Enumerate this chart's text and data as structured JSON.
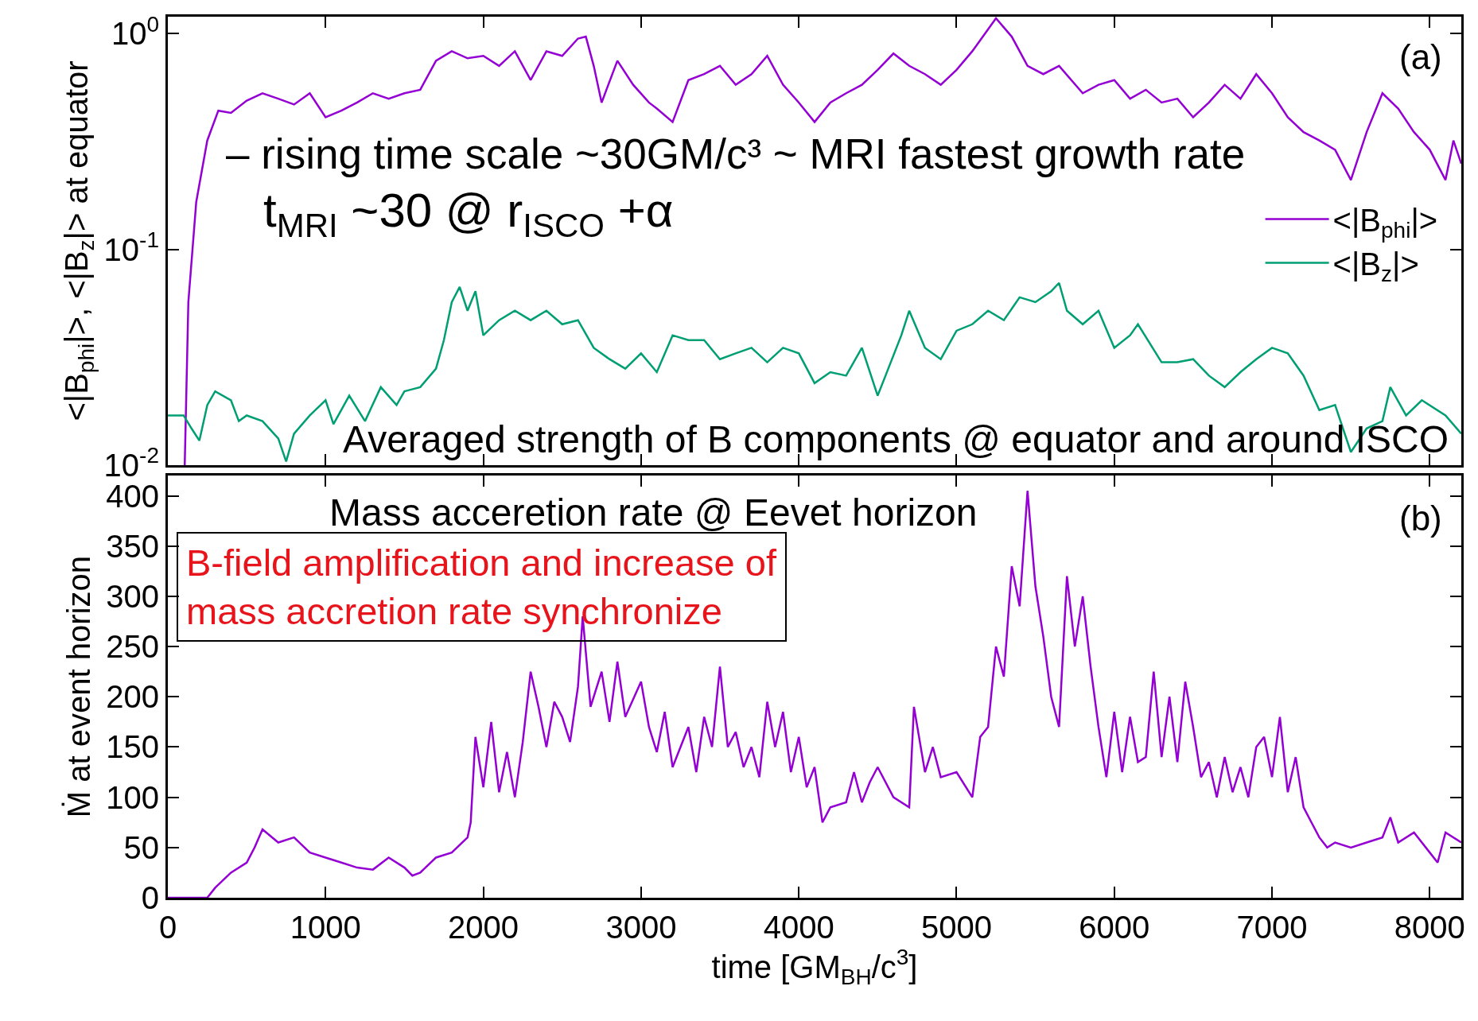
{
  "chart_data": [
    {
      "type": "line",
      "ylabel": "<|B$_{phi}$|>, <|B$_{z}$|> at equator",
      "log": "y",
      "xlim": [
        0,
        8200
      ],
      "xticks": [
        0,
        1000,
        2000,
        3000,
        4000,
        5000,
        6000,
        7000,
        8000
      ],
      "ylim": [
        0.01,
        1.2
      ],
      "yticks": [
        {
          "value": 1,
          "label": "10$^{0}$"
        },
        {
          "value": 0.1,
          "label": "10$^{-1}$"
        },
        {
          "value": 0.01,
          "label": "10$^{-2}$"
        }
      ],
      "tick_labels": "y",
      "legend": "right",
      "annotations": [
        "– rising time scale ~30GM/c³ ~ MRI fastest growth rate",
        "t$_{MRI}$ ~30 @ r$_{ISCO}$ +α",
        "Averaged strength of B components @ equator and around ISCO",
        "(a)"
      ],
      "series": [
        {
          "name": "<|B$_{phi}$|>",
          "color": "#9400d3",
          "x": [
            107,
            130,
            180,
            250,
            320,
            400,
            500,
            600,
            700,
            800,
            900,
            1000,
            1100,
            1200,
            1300,
            1400,
            1500,
            1600,
            1700,
            1800,
            1900,
            2000,
            2100,
            2200,
            2300,
            2400,
            2500,
            2600,
            2650,
            2700,
            2750,
            2850,
            2950,
            3050,
            3100,
            3200,
            3300,
            3400,
            3500,
            3600,
            3700,
            3800,
            3900,
            4000,
            4100,
            4200,
            4300,
            4400,
            4500,
            4600,
            4700,
            4800,
            4900,
            5000,
            5100,
            5250,
            5350,
            5450,
            5550,
            5650,
            5800,
            5900,
            6000,
            6100,
            6200,
            6300,
            6400,
            6500,
            6600,
            6700,
            6800,
            6900,
            7000,
            7100,
            7200,
            7300,
            7400,
            7500,
            7600,
            7700,
            7800,
            7900,
            8000,
            8100,
            8150,
            8200
          ],
          "values": [
            0.01,
            0.057,
            0.166,
            0.32,
            0.44,
            0.43,
            0.49,
            0.53,
            0.5,
            0.47,
            0.53,
            0.41,
            0.44,
            0.48,
            0.53,
            0.5,
            0.53,
            0.55,
            0.75,
            0.83,
            0.77,
            0.79,
            0.71,
            0.83,
            0.61,
            0.83,
            0.79,
            0.95,
            0.97,
            0.71,
            0.48,
            0.75,
            0.58,
            0.48,
            0.45,
            0.39,
            0.61,
            0.65,
            0.71,
            0.58,
            0.65,
            0.79,
            0.58,
            0.48,
            0.39,
            0.48,
            0.53,
            0.58,
            0.68,
            0.81,
            0.71,
            0.65,
            0.58,
            0.68,
            0.83,
            1.18,
            0.97,
            0.71,
            0.65,
            0.71,
            0.53,
            0.58,
            0.61,
            0.5,
            0.55,
            0.48,
            0.5,
            0.41,
            0.48,
            0.58,
            0.5,
            0.65,
            0.53,
            0.41,
            0.35,
            0.32,
            0.29,
            0.21,
            0.35,
            0.53,
            0.45,
            0.35,
            0.29,
            0.21,
            0.32,
            0.25
          ]
        },
        {
          "name": "<|B$_{z}$|>",
          "color": "#009e73",
          "x": [
            0,
            100,
            150,
            200,
            250,
            300,
            400,
            450,
            500,
            600,
            700,
            750,
            800,
            900,
            1000,
            1050,
            1150,
            1250,
            1350,
            1450,
            1500,
            1600,
            1700,
            1750,
            1800,
            1850,
            1900,
            1950,
            2000,
            2100,
            2200,
            2300,
            2400,
            2500,
            2600,
            2700,
            2800,
            2900,
            3000,
            3100,
            3200,
            3300,
            3400,
            3500,
            3600,
            3700,
            3800,
            3900,
            4000,
            4100,
            4200,
            4300,
            4400,
            4500,
            4550,
            4650,
            4700,
            4800,
            4900,
            5000,
            5100,
            5200,
            5300,
            5400,
            5500,
            5600,
            5650,
            5700,
            5800,
            5900,
            6000,
            6100,
            6150,
            6300,
            6400,
            6500,
            6600,
            6700,
            6800,
            6900,
            7000,
            7100,
            7200,
            7300,
            7400,
            7500,
            7600,
            7700,
            7750,
            7850,
            7950,
            8100,
            8200
          ],
          "values": [
            0.017,
            0.017,
            0.0148,
            0.013,
            0.019,
            0.022,
            0.02,
            0.016,
            0.017,
            0.016,
            0.0133,
            0.0104,
            0.014,
            0.017,
            0.02,
            0.0155,
            0.021,
            0.016,
            0.023,
            0.019,
            0.022,
            0.023,
            0.028,
            0.038,
            0.057,
            0.067,
            0.052,
            0.064,
            0.04,
            0.047,
            0.052,
            0.047,
            0.052,
            0.045,
            0.047,
            0.035,
            0.031,
            0.028,
            0.033,
            0.027,
            0.04,
            0.038,
            0.038,
            0.031,
            0.033,
            0.035,
            0.03,
            0.035,
            0.033,
            0.024,
            0.027,
            0.026,
            0.035,
            0.021,
            0.026,
            0.04,
            0.052,
            0.035,
            0.031,
            0.042,
            0.045,
            0.052,
            0.047,
            0.06,
            0.057,
            0.064,
            0.07,
            0.052,
            0.045,
            0.052,
            0.035,
            0.04,
            0.045,
            0.03,
            0.03,
            0.031,
            0.026,
            0.023,
            0.027,
            0.031,
            0.035,
            0.033,
            0.026,
            0.018,
            0.019,
            0.0115,
            0.0148,
            0.016,
            0.023,
            0.017,
            0.02,
            0.017,
            0.014
          ]
        }
      ]
    },
    {
      "type": "line",
      "xlabel": "time [GM$_{BH}$/c$^{3}$]",
      "ylabel": "Ṁ at event horizon",
      "xlim": [
        0,
        8200
      ],
      "xticks": [
        0,
        1000,
        2000,
        3000,
        4000,
        5000,
        6000,
        7000,
        8000
      ],
      "ylim": [
        0,
        420
      ],
      "yticks": [
        0,
        50,
        100,
        150,
        200,
        250,
        300,
        350,
        400
      ],
      "annotations": [
        "Mass acceretion rate @ Eevet horizon",
        "B-field amplification and increase of\nmass accretion rate synchronize",
        "(b)"
      ],
      "series": [
        {
          "color": "#9400d3",
          "x": [
            0,
            250,
            300,
            400,
            500,
            550,
            600,
            700,
            800,
            900,
            1000,
            1100,
            1200,
            1300,
            1400,
            1500,
            1550,
            1600,
            1700,
            1800,
            1900,
            1920,
            1950,
            2000,
            2050,
            2100,
            2150,
            2200,
            2250,
            2300,
            2350,
            2400,
            2450,
            2500,
            2550,
            2600,
            2630,
            2680,
            2750,
            2800,
            2850,
            2900,
            3000,
            3050,
            3100,
            3150,
            3200,
            3300,
            3350,
            3400,
            3450,
            3500,
            3550,
            3600,
            3650,
            3700,
            3750,
            3800,
            3850,
            3900,
            3950,
            4000,
            4050,
            4100,
            4150,
            4200,
            4300,
            4350,
            4400,
            4450,
            4500,
            4600,
            4700,
            4730,
            4800,
            4850,
            4900,
            5000,
            5100,
            5150,
            5200,
            5250,
            5300,
            5350,
            5400,
            5450,
            5500,
            5550,
            5600,
            5650,
            5700,
            5750,
            5800,
            5850,
            5900,
            5950,
            6000,
            6050,
            6100,
            6150,
            6200,
            6250,
            6300,
            6350,
            6400,
            6450,
            6500,
            6550,
            6600,
            6650,
            6700,
            6750,
            6800,
            6850,
            6900,
            6950,
            7000,
            7050,
            7100,
            7150,
            7200,
            7250,
            7300,
            7350,
            7400,
            7500,
            7600,
            7700,
            7750,
            7800,
            7900,
            8000,
            8050,
            8100,
            8200
          ],
          "values": [
            0,
            0,
            10,
            25,
            35,
            50,
            68,
            55,
            60,
            45,
            40,
            35,
            30,
            28,
            40,
            30,
            22,
            25,
            40,
            45,
            60,
            75,
            160,
            110,
            175,
            105,
            145,
            100,
            155,
            225,
            190,
            150,
            195,
            180,
            155,
            210,
            280,
            190,
            225,
            175,
            235,
            180,
            215,
            170,
            145,
            185,
            130,
            170,
            125,
            180,
            150,
            230,
            150,
            165,
            130,
            150,
            120,
            195,
            150,
            185,
            125,
            160,
            110,
            130,
            75,
            90,
            95,
            125,
            95,
            115,
            130,
            100,
            90,
            190,
            125,
            150,
            120,
            125,
            100,
            160,
            170,
            250,
            220,
            330,
            290,
            405,
            310,
            260,
            200,
            170,
            320,
            250,
            300,
            230,
            170,
            120,
            185,
            125,
            180,
            135,
            140,
            225,
            140,
            200,
            135,
            215,
            170,
            120,
            135,
            100,
            140,
            105,
            130,
            100,
            150,
            160,
            120,
            180,
            105,
            140,
            90,
            75,
            60,
            50,
            55,
            50,
            55,
            60,
            80,
            55,
            65,
            45,
            35,
            65,
            55
          ]
        }
      ]
    }
  ]
}
